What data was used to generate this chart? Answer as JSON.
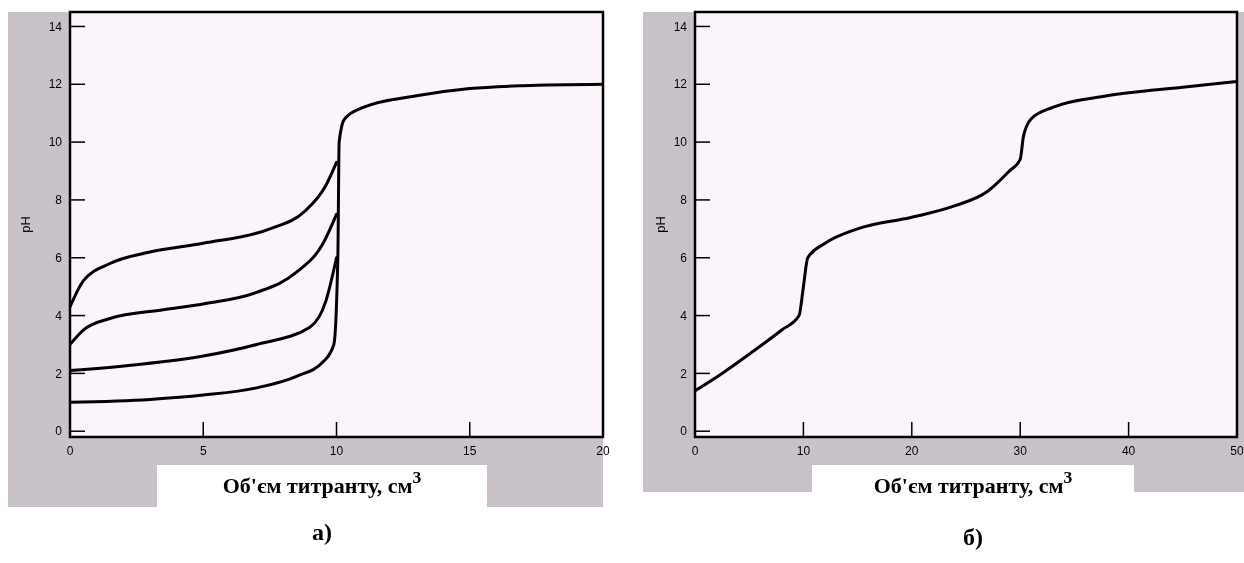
{
  "chart_data": [
    {
      "type": "line",
      "xlabel": "Об'єм титранту, см$^{3}$",
      "ylabel": "pH",
      "annotations": [
        "а)"
      ],
      "xlim": [
        0,
        20
      ],
      "ylim": [
        -0.2,
        14.5
      ],
      "xticks": [
        0,
        5,
        10,
        15,
        20
      ],
      "yticks": [
        0,
        2,
        4,
        6,
        8,
        10,
        12,
        14
      ],
      "grid": false,
      "marker": "none",
      "line_style": "solid",
      "series": [
        {
          "color": "#000000",
          "x": [
            0,
            3,
            5,
            7,
            8.5,
            9.5,
            9.9,
            10.05,
            10.1,
            10.3,
            11,
            13,
            15,
            17,
            20
          ],
          "values": [
            1.0,
            1.1,
            1.25,
            1.5,
            1.9,
            2.4,
            3,
            6,
            10,
            10.8,
            11.2,
            11.6,
            11.85,
            11.95,
            12
          ]
        },
        {
          "color": "#000000",
          "x": [
            0,
            2.5,
            5,
            7,
            9,
            9.6,
            10
          ],
          "values": [
            2.1,
            2.3,
            2.6,
            3.0,
            3.6,
            4.5,
            6
          ]
        },
        {
          "color": "#000000",
          "x": [
            0,
            0.5,
            1.5,
            3.5,
            5,
            7,
            8.5,
            9.5,
            10
          ],
          "values": [
            3.0,
            3.5,
            3.9,
            4.2,
            4.4,
            4.8,
            5.5,
            6.5,
            7.5
          ]
        },
        {
          "color": "#000000",
          "x": [
            0,
            0.5,
            1.5,
            3,
            5,
            7.5,
            8.8,
            9.6,
            10
          ],
          "values": [
            4.3,
            5.2,
            5.8,
            6.2,
            6.5,
            7.0,
            7.6,
            8.5,
            9.3
          ]
        }
      ]
    },
    {
      "type": "line",
      "xlabel": "Об'єм титранту, см$^{3}$",
      "ylabel": "pH",
      "annotations": [
        "б)"
      ],
      "xlim": [
        0,
        50
      ],
      "ylim": [
        -0.2,
        14.5
      ],
      "xticks": [
        0,
        10,
        20,
        30,
        40,
        50
      ],
      "yticks": [
        0,
        2,
        4,
        6,
        8,
        10,
        12,
        14
      ],
      "grid": false,
      "marker": "none",
      "line_style": "solid",
      "series": [
        {
          "color": "#000000",
          "x": [
            0,
            2.5,
            5.5,
            8,
            9.6,
            10,
            10.4,
            12,
            15,
            20,
            24,
            27,
            29,
            30,
            30.3,
            31,
            33,
            38,
            45,
            50
          ],
          "values": [
            1.4,
            2,
            2.8,
            3.5,
            4,
            5,
            6,
            6.5,
            7,
            7.4,
            7.8,
            8.3,
            9.0,
            9.4,
            10.2,
            10.8,
            11.2,
            11.6,
            11.9,
            12.1
          ]
        }
      ]
    }
  ]
}
